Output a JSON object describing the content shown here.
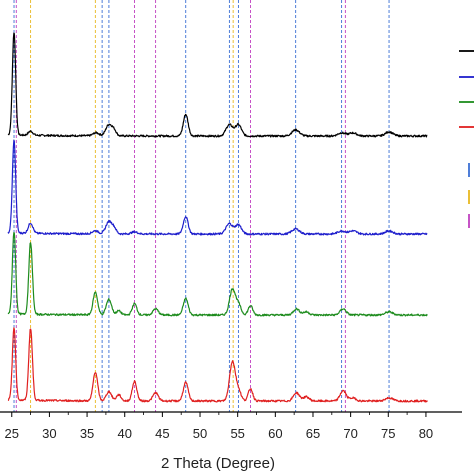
{
  "chart_data": {
    "type": "line",
    "title": "",
    "xlabel": "2 Theta (Degree)",
    "ylabel": "",
    "xlim": [
      24.5,
      82
    ],
    "xticks": [
      25,
      30,
      35,
      40,
      45,
      50,
      55,
      60,
      65,
      70,
      75,
      80
    ],
    "grid": false,
    "series": [
      {
        "color": "#000000",
        "offset": 3,
        "peaks": [
          [
            25.3,
            10.0,
            0.22
          ],
          [
            27.5,
            0.4,
            0.3
          ],
          [
            36.2,
            0.3,
            0.4
          ],
          [
            37.9,
            1.1,
            0.4
          ],
          [
            38.6,
            0.5,
            0.3
          ],
          [
            48.1,
            2.1,
            0.32
          ],
          [
            53.9,
            1.1,
            0.45
          ],
          [
            55.1,
            1.1,
            0.4
          ],
          [
            62.7,
            0.6,
            0.5
          ],
          [
            68.8,
            0.3,
            0.5
          ],
          [
            70.3,
            0.3,
            0.5
          ],
          [
            75.1,
            0.4,
            0.5
          ]
        ]
      },
      {
        "color": "#1f1fcc",
        "offset": 2,
        "peaks": [
          [
            25.3,
            9.0,
            0.22
          ],
          [
            27.5,
            1.0,
            0.3
          ],
          [
            36.1,
            0.3,
            0.4
          ],
          [
            37.9,
            1.2,
            0.4
          ],
          [
            38.6,
            0.5,
            0.3
          ],
          [
            41.3,
            0.2,
            0.4
          ],
          [
            48.1,
            1.7,
            0.32
          ],
          [
            53.9,
            1.0,
            0.45
          ],
          [
            55.1,
            0.9,
            0.4
          ],
          [
            62.7,
            0.5,
            0.5
          ],
          [
            68.8,
            0.3,
            0.5
          ],
          [
            70.3,
            0.3,
            0.5
          ],
          [
            75.1,
            0.3,
            0.5
          ]
        ]
      },
      {
        "color": "#1e8c1e",
        "offset": 1,
        "peaks": [
          [
            25.3,
            8.0,
            0.22
          ],
          [
            27.5,
            7.0,
            0.24
          ],
          [
            36.1,
            2.2,
            0.3
          ],
          [
            37.9,
            1.5,
            0.35
          ],
          [
            39.2,
            0.4,
            0.3
          ],
          [
            41.3,
            1.1,
            0.3
          ],
          [
            44.1,
            0.6,
            0.35
          ],
          [
            48.1,
            1.6,
            0.32
          ],
          [
            54.3,
            2.5,
            0.38
          ],
          [
            55.1,
            1.0,
            0.35
          ],
          [
            56.7,
            0.9,
            0.3
          ],
          [
            62.8,
            0.6,
            0.4
          ],
          [
            64.1,
            0.3,
            0.4
          ],
          [
            69.0,
            0.6,
            0.4
          ],
          [
            75.1,
            0.3,
            0.5
          ]
        ]
      },
      {
        "color": "#e02020",
        "offset": 0,
        "peaks": [
          [
            25.3,
            7.0,
            0.22
          ],
          [
            27.5,
            7.0,
            0.24
          ],
          [
            36.1,
            2.8,
            0.3
          ],
          [
            37.9,
            0.9,
            0.35
          ],
          [
            39.2,
            0.6,
            0.3
          ],
          [
            41.3,
            1.9,
            0.3
          ],
          [
            44.1,
            0.8,
            0.35
          ],
          [
            48.1,
            1.8,
            0.32
          ],
          [
            54.3,
            3.8,
            0.38
          ],
          [
            55.1,
            1.0,
            0.35
          ],
          [
            56.7,
            1.2,
            0.3
          ],
          [
            62.8,
            0.8,
            0.4
          ],
          [
            64.1,
            0.4,
            0.4
          ],
          [
            69.0,
            1.0,
            0.4
          ],
          [
            70.3,
            0.3,
            0.4
          ],
          [
            75.1,
            0.3,
            0.5
          ]
        ]
      }
    ],
    "reference_lines": [
      {
        "color": "#3b6fd4",
        "x": [
          25.3,
          37.0,
          37.9,
          48.1,
          53.9,
          55.1,
          62.7,
          68.8,
          75.1
        ]
      },
      {
        "color": "#e8b820",
        "x": [
          27.5,
          36.1,
          54.4
        ]
      },
      {
        "color": "#c040c0",
        "x": [
          25.6,
          41.3,
          44.1,
          56.7,
          69.3
        ]
      }
    ],
    "legend": {
      "placement": "right",
      "series_colors": [
        "#000000",
        "#1f1fcc",
        "#1e8c1e",
        "#e02020"
      ],
      "reference_colors": [
        "#3b6fd4",
        "#e8b820",
        "#c040c0"
      ]
    }
  }
}
